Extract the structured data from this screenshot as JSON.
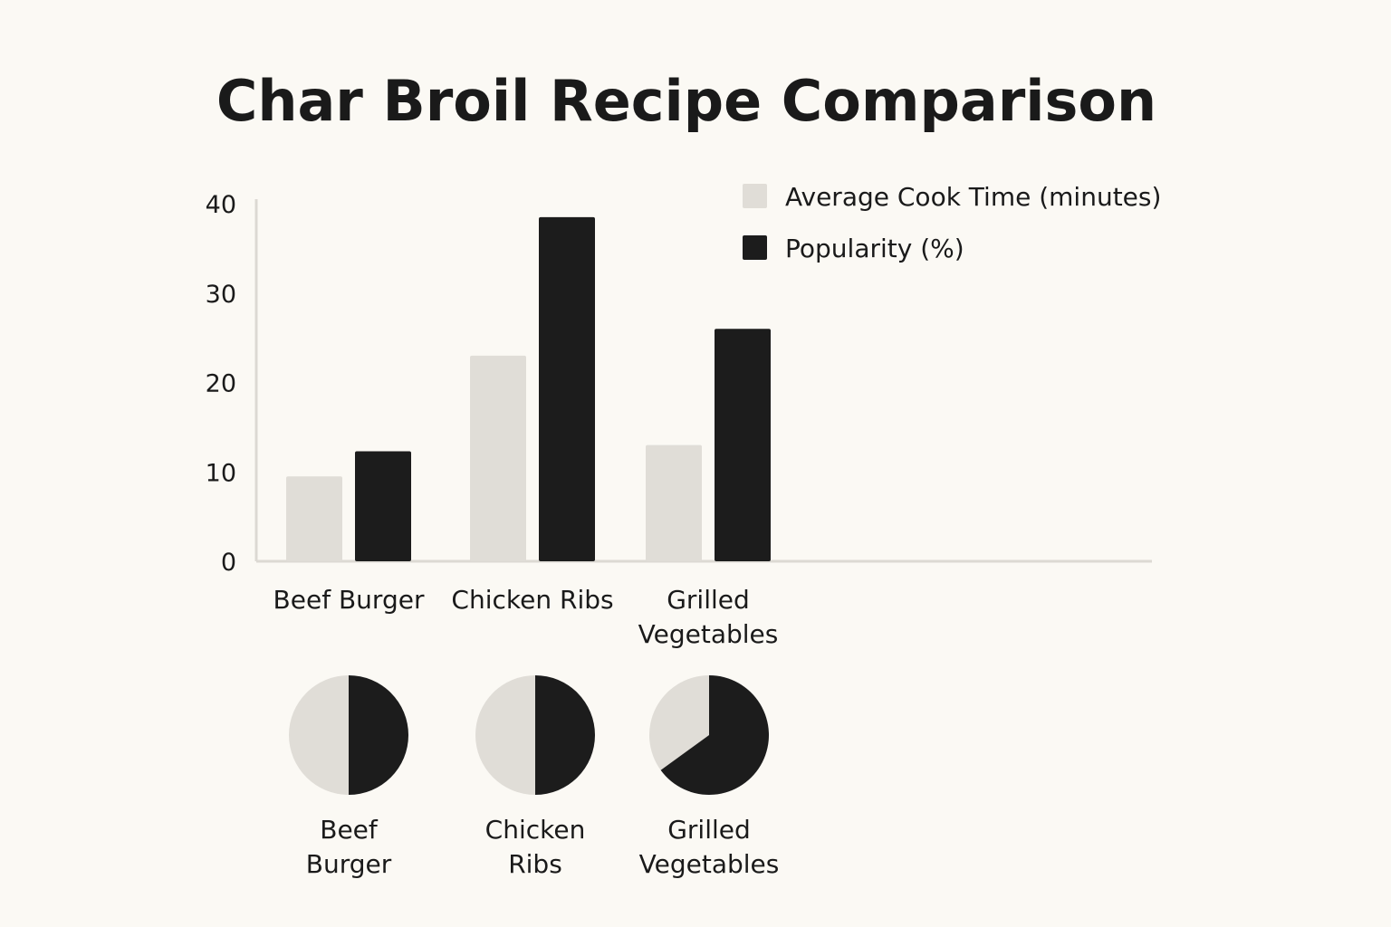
{
  "chart_data": [
    {
      "type": "bar",
      "title": "Char Broil Recipe Comparison",
      "categories": [
        "Beef Burger",
        "Chicken Ribs",
        "Grilled Vegetables"
      ],
      "category_lines": [
        [
          "Beef Burger"
        ],
        [
          "Chicken Ribs"
        ],
        [
          "Grilled",
          "Vegetables"
        ]
      ],
      "series": [
        {
          "name": "Average Cook Time (minutes)",
          "values": [
            9.5,
            23,
            13
          ],
          "color": "#e0ddd7"
        },
        {
          "name": "Popularity (%)",
          "values": [
            12.3,
            38.5,
            26
          ],
          "color": "#1c1c1c"
        }
      ],
      "yticks": [
        0,
        10,
        20,
        30,
        40
      ],
      "ylim": [
        0,
        40
      ],
      "grid": false,
      "legend_position": "top-right"
    },
    {
      "type": "pie",
      "pies": [
        {
          "label_lines": [
            "Beef",
            "Burger"
          ],
          "slices": [
            50,
            50
          ]
        },
        {
          "label_lines": [
            "Chicken",
            "Ribs"
          ],
          "slices": [
            50,
            50
          ]
        },
        {
          "label_lines": [
            "Grilled",
            "Vegetables"
          ],
          "slices": [
            35,
            65
          ]
        }
      ],
      "slice_colors": [
        "#e0ddd7",
        "#1c1c1c"
      ]
    }
  ]
}
